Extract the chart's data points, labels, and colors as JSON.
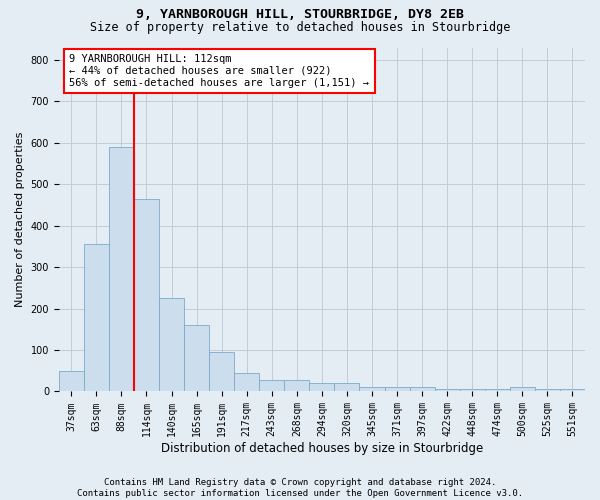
{
  "title": "9, YARNBOROUGH HILL, STOURBRIDGE, DY8 2EB",
  "subtitle": "Size of property relative to detached houses in Stourbridge",
  "xlabel": "Distribution of detached houses by size in Stourbridge",
  "ylabel": "Number of detached properties",
  "footer_line1": "Contains HM Land Registry data © Crown copyright and database right 2024.",
  "footer_line2": "Contains public sector information licensed under the Open Government Licence v3.0.",
  "bin_labels": [
    "37sqm",
    "63sqm",
    "88sqm",
    "114sqm",
    "140sqm",
    "165sqm",
    "191sqm",
    "217sqm",
    "243sqm",
    "268sqm",
    "294sqm",
    "320sqm",
    "345sqm",
    "371sqm",
    "397sqm",
    "422sqm",
    "448sqm",
    "474sqm",
    "500sqm",
    "525sqm",
    "551sqm"
  ],
  "bar_values": [
    50,
    355,
    590,
    465,
    225,
    160,
    95,
    45,
    28,
    28,
    20,
    20,
    10,
    10,
    10,
    5,
    5,
    5,
    10,
    5,
    5
  ],
  "bar_color": "#ccdded",
  "bar_edge_color": "#7aaac8",
  "grid_color": "#c0cdd8",
  "bg_color": "#e4ecf4",
  "vline_color": "red",
  "vline_pos": 2.5,
  "annotation_text": "9 YARNBOROUGH HILL: 112sqm\n← 44% of detached houses are smaller (922)\n56% of semi-detached houses are larger (1,151) →",
  "annotation_box_facecolor": "white",
  "annotation_box_edgecolor": "red",
  "ylim_max": 830,
  "yticks": [
    0,
    100,
    200,
    300,
    400,
    500,
    600,
    700,
    800
  ],
  "title_fontsize": 9.5,
  "subtitle_fontsize": 8.5,
  "ylabel_fontsize": 8,
  "xlabel_fontsize": 8.5,
  "tick_fontsize": 7,
  "annotation_fontsize": 7.5,
  "footer_fontsize": 6.5
}
